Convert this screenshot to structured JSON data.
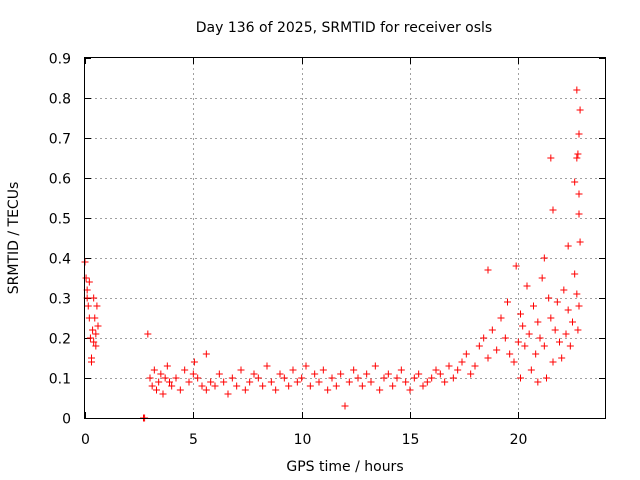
{
  "chart_data": {
    "type": "scatter",
    "title": "Day 136 of 2025, SRMTID for receiver osls",
    "xlabel": "GPS time / hours",
    "ylabel": "SRMTID / TECUs",
    "xlim": [
      0,
      24
    ],
    "ylim": [
      0,
      0.9
    ],
    "xticks": [
      0,
      5,
      10,
      15,
      20
    ],
    "xtick_labels": [
      "0",
      "5",
      "10",
      "15",
      "20"
    ],
    "yticks": [
      0,
      0.1,
      0.2,
      0.3,
      0.4,
      0.5,
      0.6,
      0.7,
      0.8,
      0.9
    ],
    "ytick_labels": [
      "0",
      "0.1",
      "0.2",
      "0.3",
      "0.4",
      "0.5",
      "0.6",
      "0.7",
      "0.8",
      "0.9"
    ],
    "grid": true,
    "marker": "+",
    "series": [
      {
        "name": "SRMTID",
        "color": "#ff0000",
        "x": [
          0.0,
          0.05,
          0.1,
          0.15,
          0.2,
          0.25,
          0.3,
          0.35,
          0.4,
          0.45,
          0.5,
          0.55,
          0.6,
          0.1,
          0.2,
          0.3,
          0.4,
          0.5,
          2.7,
          2.75,
          2.9,
          3.0,
          3.1,
          3.2,
          3.3,
          3.4,
          3.5,
          3.6,
          3.7,
          3.8,
          3.9,
          4.0,
          4.2,
          4.4,
          4.6,
          4.8,
          5.0,
          5.05,
          5.2,
          5.4,
          5.6,
          5.8,
          5.6,
          6.0,
          6.2,
          6.4,
          6.6,
          6.8,
          7.0,
          7.2,
          7.4,
          7.6,
          7.8,
          8.0,
          8.2,
          8.4,
          8.6,
          8.8,
          9.0,
          9.2,
          9.4,
          9.6,
          9.8,
          10.0,
          10.2,
          10.4,
          10.6,
          10.8,
          11.0,
          11.2,
          11.4,
          11.6,
          11.8,
          12.0,
          12.2,
          12.4,
          12.6,
          12.8,
          13.0,
          13.2,
          13.4,
          13.6,
          13.8,
          14.0,
          14.2,
          14.4,
          14.6,
          14.8,
          15.0,
          15.2,
          15.4,
          15.6,
          15.8,
          16.0,
          16.2,
          16.4,
          16.6,
          16.8,
          17.0,
          17.2,
          17.4,
          17.6,
          17.8,
          18.0,
          18.2,
          18.4,
          18.6,
          18.8,
          19.0,
          19.2,
          19.4,
          19.6,
          19.8,
          20.0,
          20.1,
          20.2,
          20.3,
          20.4,
          20.5,
          20.6,
          20.7,
          20.8,
          20.9,
          21.0,
          21.1,
          21.2,
          21.3,
          21.4,
          21.5,
          21.6,
          21.7,
          21.8,
          21.9,
          22.0,
          22.1,
          22.2,
          22.3,
          22.4,
          22.5,
          22.6,
          22.7,
          22.75,
          22.8,
          22.85,
          22.8,
          22.7,
          22.75,
          22.8,
          22.6,
          22.85,
          22.7,
          22.8,
          21.6,
          21.5,
          20.1,
          19.9,
          18.6,
          19.5,
          21.2,
          20.9,
          22.3
        ],
        "y": [
          0.39,
          0.35,
          0.32,
          0.28,
          0.25,
          0.2,
          0.15,
          0.22,
          0.3,
          0.25,
          0.18,
          0.28,
          0.23,
          0.3,
          0.34,
          0.14,
          0.19,
          0.21,
          0.0,
          0.0,
          0.21,
          0.1,
          0.08,
          0.12,
          0.07,
          0.09,
          0.11,
          0.06,
          0.1,
          0.13,
          0.09,
          0.08,
          0.1,
          0.07,
          0.12,
          0.09,
          0.11,
          0.14,
          0.1,
          0.08,
          0.07,
          0.09,
          0.16,
          0.08,
          0.11,
          0.09,
          0.06,
          0.1,
          0.08,
          0.12,
          0.07,
          0.09,
          0.11,
          0.1,
          0.08,
          0.13,
          0.09,
          0.07,
          0.11,
          0.1,
          0.08,
          0.12,
          0.09,
          0.1,
          0.13,
          0.08,
          0.11,
          0.09,
          0.12,
          0.07,
          0.1,
          0.08,
          0.11,
          0.03,
          0.09,
          0.12,
          0.1,
          0.08,
          0.11,
          0.09,
          0.13,
          0.07,
          0.1,
          0.11,
          0.08,
          0.1,
          0.12,
          0.09,
          0.07,
          0.1,
          0.11,
          0.08,
          0.09,
          0.1,
          0.12,
          0.11,
          0.09,
          0.13,
          0.1,
          0.12,
          0.14,
          0.16,
          0.11,
          0.13,
          0.18,
          0.2,
          0.15,
          0.22,
          0.17,
          0.25,
          0.2,
          0.16,
          0.14,
          0.19,
          0.26,
          0.23,
          0.18,
          0.33,
          0.21,
          0.12,
          0.28,
          0.16,
          0.24,
          0.2,
          0.35,
          0.18,
          0.1,
          0.3,
          0.25,
          0.14,
          0.22,
          0.29,
          0.19,
          0.15,
          0.32,
          0.21,
          0.27,
          0.18,
          0.24,
          0.36,
          0.31,
          0.22,
          0.28,
          0.44,
          0.56,
          0.65,
          0.66,
          0.71,
          0.59,
          0.77,
          0.82,
          0.51,
          0.52,
          0.65,
          0.1,
          0.38,
          0.37,
          0.29,
          0.4,
          0.09,
          0.43
        ]
      }
    ]
  }
}
